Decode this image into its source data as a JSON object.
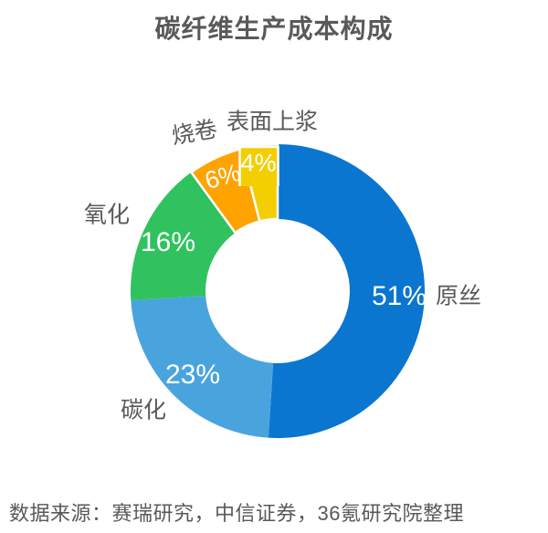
{
  "title": "碳纤维生产成本构成",
  "source_note": "数据来源：赛瑞研究，中信证券，36氪研究院整理",
  "colors": {
    "text_gray": "#595959",
    "pct_label": "#ffffff",
    "slice_gap": "#ffffff"
  },
  "chart_data": {
    "type": "pie",
    "subtype": "donut",
    "title": "碳纤维生产成本构成",
    "unit": "%",
    "direction": "clockwise",
    "start_angle_deg": 0,
    "inner_radius_ratio": 0.49,
    "legend": "none",
    "categories": [
      "原丝",
      "碳化",
      "氧化",
      "烧卷",
      "表面上浆"
    ],
    "values": [
      51,
      23,
      16,
      6,
      4
    ],
    "series": [
      {
        "label": "原丝",
        "value": 51,
        "pct_label": "51%",
        "color": "#0a76cf"
      },
      {
        "label": "碳化",
        "value": 23,
        "pct_label": "23%",
        "color": "#49a4de"
      },
      {
        "label": "氧化",
        "value": 16,
        "pct_label": "16%",
        "color": "#30c25f"
      },
      {
        "label": "烧卷",
        "value": 6,
        "pct_label": "6%",
        "color": "#ffa300"
      },
      {
        "label": "表面上浆",
        "value": 4,
        "pct_label": "4%",
        "color": "#f3ce00"
      }
    ]
  }
}
